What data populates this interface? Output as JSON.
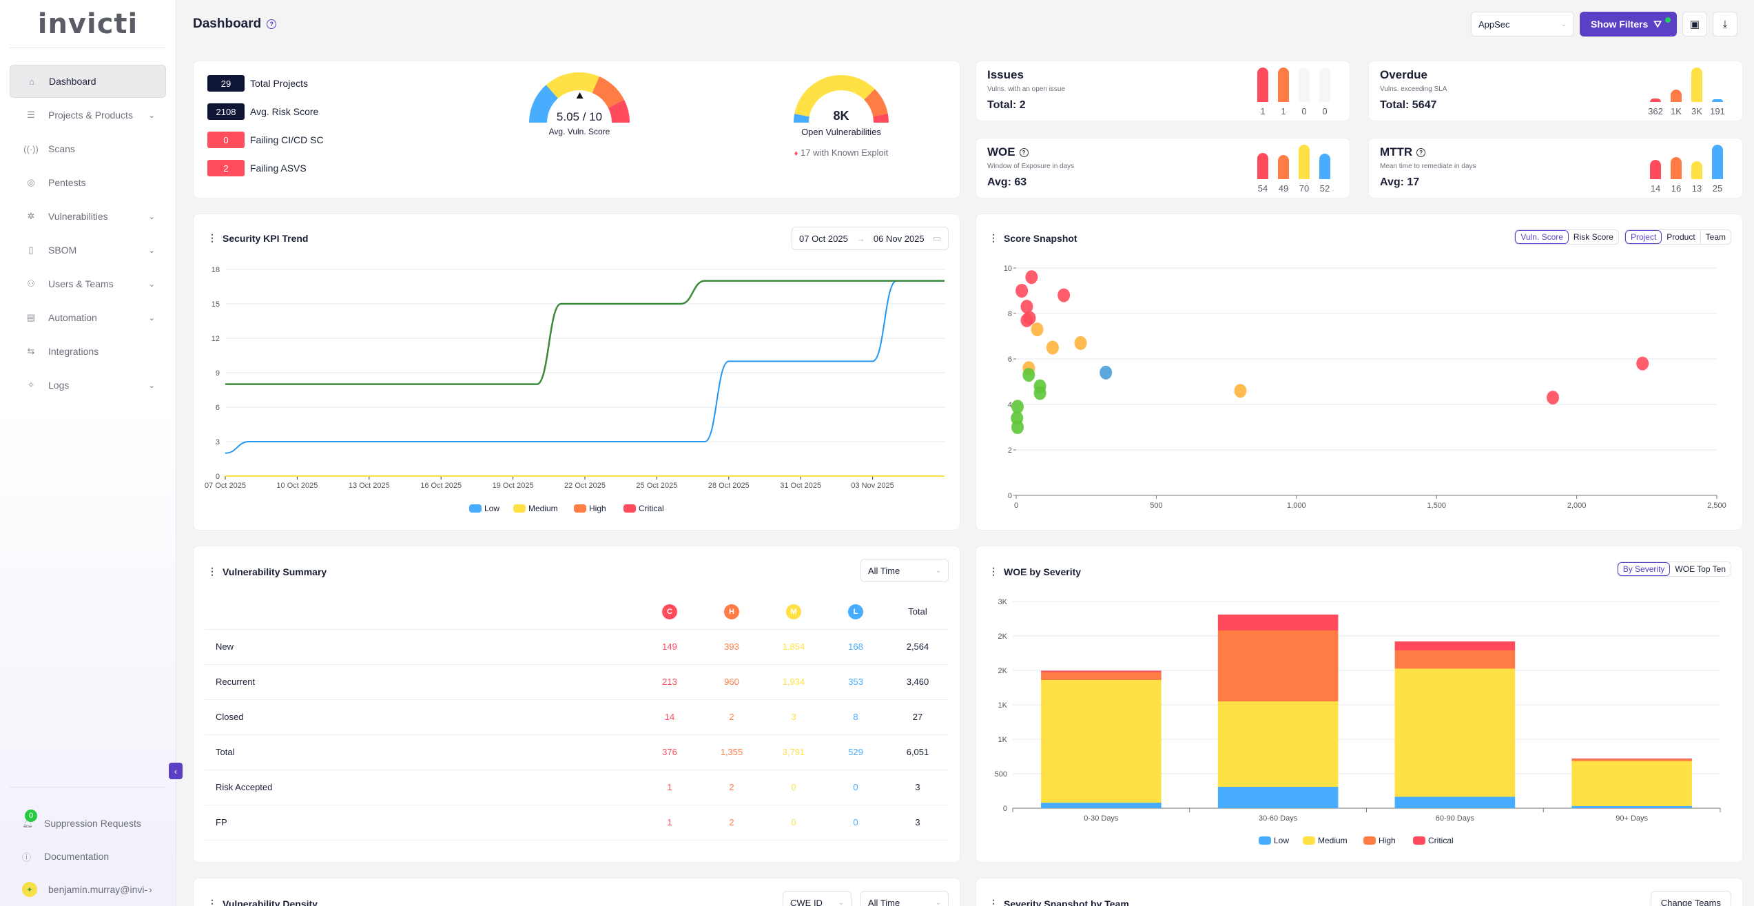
{
  "app": {
    "logo": "invicti"
  },
  "sidebar": {
    "items": [
      {
        "label": "Dashboard",
        "icon": "home-icon",
        "glyph": "⌂",
        "active": true,
        "chevron": false
      },
      {
        "label": "Projects & Products",
        "icon": "list-icon",
        "glyph": "☰",
        "chevron": true
      },
      {
        "label": "Scans",
        "icon": "radar-icon",
        "glyph": "((·))",
        "chevron": false
      },
      {
        "label": "Pentests",
        "icon": "location-icon",
        "glyph": "◎",
        "chevron": false
      },
      {
        "label": "Vulnerabilities",
        "icon": "bug-icon",
        "glyph": "✲",
        "chevron": true
      },
      {
        "label": "SBOM",
        "icon": "file-icon",
        "glyph": "▯",
        "chevron": true
      },
      {
        "label": "Users & Teams",
        "icon": "users-icon",
        "glyph": "⚇",
        "chevron": true
      },
      {
        "label": "Automation",
        "icon": "automation-icon",
        "glyph": "▤",
        "chevron": true
      },
      {
        "label": "Integrations",
        "icon": "integrations-icon",
        "glyph": "⇆",
        "chevron": false
      },
      {
        "label": "Logs",
        "icon": "logs-icon",
        "glyph": "✧",
        "chevron": true
      }
    ],
    "chevron_glyph": "⌄",
    "bottom": {
      "suppression_label": "Suppression Requests",
      "suppression_count": "0",
      "documentation_label": "Documentation",
      "user_email": "benjamin.murray@invi-",
      "user_arrow": "›",
      "collapse_glyph": "‹"
    }
  },
  "header": {
    "title": "Dashboard",
    "help_glyph": "?",
    "workspace_select": "AppSec",
    "show_filters_label": "Show Filters",
    "filter_glyph": "⛛",
    "layout_glyph": "▣",
    "download_glyph": "⤓"
  },
  "overview": {
    "stats": [
      {
        "value": "29",
        "label": "Total Projects",
        "color": "#0f1535"
      },
      {
        "value": "2108",
        "label": "Avg. Risk Score",
        "color": "#0f1535"
      },
      {
        "value": "0",
        "label": "Failing CI/CD SC",
        "color": "#ff4d5e"
      },
      {
        "value": "2",
        "label": "Failing ASVS",
        "color": "#ff4d5e"
      }
    ],
    "vuln_gauge": {
      "value_text": "5.05 / 10",
      "label": "Avg. Vuln. Score",
      "score": 5.05,
      "max": 10
    },
    "open_gauge": {
      "value_text": "8K",
      "label": "Open Vulnerabilities",
      "exploit_text": "17 with Known Exploit",
      "flame_glyph": "🔥"
    }
  },
  "minis": [
    {
      "title": "Issues",
      "help": false,
      "subtitle": "Vulns. with an open issue",
      "total": "Total: 2",
      "bars": [
        {
          "value": "1",
          "level": 1.0
        },
        {
          "value": "1",
          "level": 1.0
        },
        {
          "value": "0",
          "level": 0
        },
        {
          "value": "0",
          "level": 0
        }
      ]
    },
    {
      "title": "Overdue",
      "help": false,
      "subtitle": "Vulns. exceeding SLA",
      "total": "Total: 5647",
      "bars": [
        {
          "value": "362",
          "level": 0.1
        },
        {
          "value": "1K",
          "level": 0.36
        },
        {
          "value": "3K",
          "level": 1.0
        },
        {
          "value": "191",
          "level": 0.06
        }
      ]
    },
    {
      "title": "WOE",
      "help": true,
      "subtitle": "Window of Exposure in days",
      "total": "Avg: 63",
      "bars": [
        {
          "value": "54",
          "level": 0.77
        },
        {
          "value": "49",
          "level": 0.7
        },
        {
          "value": "70",
          "level": 1.0
        },
        {
          "value": "52",
          "level": 0.74
        }
      ]
    },
    {
      "title": "MTTR",
      "help": true,
      "subtitle": "Mean time to remediate in days",
      "total": "Avg: 17",
      "bars": [
        {
          "value": "14",
          "level": 0.56
        },
        {
          "value": "16",
          "level": 0.64
        },
        {
          "value": "13",
          "level": 0.52
        },
        {
          "value": "25",
          "level": 1.0
        }
      ]
    }
  ],
  "severity_colors": {
    "critical": "#ff4b5c",
    "high": "#ff7d45",
    "medium": "#ffe145",
    "low": "#48adff"
  },
  "kpi_card": {
    "title": "Security KPI Trend",
    "date_from": "07 Oct 2025",
    "date_to": "06 Nov 2025",
    "arrow": "→",
    "calendar_glyph": "▭"
  },
  "score_card": {
    "title": "Score Snapshot",
    "toggle_a": [
      "Vuln. Score",
      "Risk Score"
    ],
    "toggle_b": [
      "Project",
      "Product",
      "Team"
    ]
  },
  "summary_card": {
    "title": "Vulnerability Summary",
    "period": "All Time",
    "headers": [
      "C",
      "H",
      "M",
      "L",
      "Total"
    ],
    "rows": [
      {
        "label": "New",
        "values": [
          "149",
          "393",
          "1,854",
          "168",
          "2,564"
        ]
      },
      {
        "label": "Recurrent",
        "values": [
          "213",
          "960",
          "1,934",
          "353",
          "3,460"
        ]
      },
      {
        "label": "Closed",
        "values": [
          "14",
          "2",
          "3",
          "8",
          "27"
        ]
      },
      {
        "label": "Total",
        "values": [
          "376",
          "1,355",
          "3,791",
          "529",
          "6,051"
        ]
      },
      {
        "label": "Risk Accepted",
        "values": [
          "1",
          "2",
          "0",
          "0",
          "3"
        ]
      },
      {
        "label": "FP",
        "values": [
          "1",
          "2",
          "0",
          "0",
          "3"
        ]
      }
    ]
  },
  "woe_card": {
    "title": "WOE by Severity",
    "toggle": [
      "By Severity",
      "WOE Top Ten"
    ]
  },
  "density_card": {
    "title": "Vulnerability Density",
    "filter_a": "CWE ID",
    "filter_b": "All Time"
  },
  "team_card": {
    "title": "Severity Snapshot by Team",
    "button": "Change Teams"
  },
  "chart_data": [
    {
      "type": "line",
      "title": "Security KPI Trend",
      "x": [
        "07 Oct 2025",
        "08 Oct 2025",
        "09 Oct 2025",
        "10 Oct 2025",
        "11 Oct 2025",
        "12 Oct 2025",
        "13 Oct 2025",
        "14 Oct 2025",
        "15 Oct 2025",
        "16 Oct 2025",
        "17 Oct 2025",
        "18 Oct 2025",
        "19 Oct 2025",
        "20 Oct 2025",
        "21 Oct 2025",
        "22 Oct 2025",
        "23 Oct 2025",
        "24 Oct 2025",
        "25 Oct 2025",
        "26 Oct 2025",
        "27 Oct 2025",
        "28 Oct 2025",
        "29 Oct 2025",
        "30 Oct 2025",
        "31 Oct 2025",
        "01 Nov 2025",
        "02 Nov 2025",
        "03 Nov 2025",
        "04 Nov 2025",
        "05 Nov 2025",
        "06 Nov 2025"
      ],
      "xticks": [
        "07 Oct 2025",
        "10 Oct 2025",
        "13 Oct 2025",
        "16 Oct 2025",
        "19 Oct 2025",
        "22 Oct 2025",
        "25 Oct 2025",
        "28 Oct 2025",
        "31 Oct 2025",
        "03 Nov 2025"
      ],
      "ylim": [
        0,
        18
      ],
      "yticks": [
        0,
        3,
        6,
        9,
        12,
        15,
        18
      ],
      "series": [
        {
          "name": "Total",
          "color": "#3a8a3a",
          "legend": false,
          "values": [
            8,
            8,
            8,
            8,
            8,
            8,
            8,
            8,
            8,
            8,
            8,
            8,
            8,
            8,
            15,
            15,
            15,
            15,
            15,
            15,
            17,
            17,
            17,
            17,
            17,
            17,
            17,
            17,
            17,
            17,
            17
          ]
        },
        {
          "name": "Low",
          "color": "#2196f3",
          "legend": true,
          "values": [
            2,
            3,
            3,
            3,
            3,
            3,
            3,
            3,
            3,
            3,
            3,
            3,
            3,
            3,
            3,
            3,
            3,
            3,
            3,
            3,
            3,
            10,
            10,
            10,
            10,
            10,
            10,
            10,
            17,
            17,
            17
          ]
        },
        {
          "name": "Medium",
          "color": "#ffe145",
          "legend": true,
          "values": [
            0,
            0,
            0,
            0,
            0,
            0,
            0,
            0,
            0,
            0,
            0,
            0,
            0,
            0,
            0,
            0,
            0,
            0,
            0,
            0,
            0,
            0,
            0,
            0,
            0,
            0,
            0,
            0,
            0,
            0,
            0
          ]
        },
        {
          "name": "High",
          "color": "#ff7d45",
          "legend": true,
          "values": [
            0,
            0,
            0,
            0,
            0,
            0,
            0,
            0,
            0,
            0,
            0,
            0,
            0,
            0,
            0,
            0,
            0,
            0,
            0,
            0,
            0,
            0,
            0,
            0,
            0,
            0,
            0,
            0,
            0,
            0,
            0
          ]
        },
        {
          "name": "Critical",
          "color": "#ff4b5c",
          "legend": true,
          "values": [
            0,
            0,
            0,
            0,
            0,
            0,
            0,
            0,
            0,
            0,
            0,
            0,
            0,
            0,
            0,
            0,
            0,
            0,
            0,
            0,
            0,
            0,
            0,
            0,
            0,
            0,
            0,
            0,
            0,
            0,
            0
          ]
        }
      ],
      "legend_entries": [
        "Low",
        "Medium",
        "High",
        "Critical"
      ],
      "legend": "bottom",
      "grid": true
    },
    {
      "type": "scatter",
      "title": "Score Snapshot",
      "xlim": [
        0,
        2500
      ],
      "ylim": [
        0,
        10
      ],
      "xticks": [
        "0",
        "500",
        "1,000",
        "1,500",
        "2,000",
        "2,500"
      ],
      "yticks": [
        0,
        2,
        4,
        6,
        8,
        10
      ],
      "points": [
        {
          "x": 55,
          "y": 9.6,
          "sev": "critical"
        },
        {
          "x": 20,
          "y": 9.0,
          "sev": "critical"
        },
        {
          "x": 170,
          "y": 8.8,
          "sev": "critical"
        },
        {
          "x": 38,
          "y": 8.3,
          "sev": "critical"
        },
        {
          "x": 48,
          "y": 7.8,
          "sev": "critical"
        },
        {
          "x": 38,
          "y": 7.7,
          "sev": "critical"
        },
        {
          "x": 75,
          "y": 7.3,
          "sev": "medium"
        },
        {
          "x": 130,
          "y": 6.5,
          "sev": "medium"
        },
        {
          "x": 230,
          "y": 6.7,
          "sev": "medium"
        },
        {
          "x": 45,
          "y": 5.6,
          "sev": "medium"
        },
        {
          "x": 45,
          "y": 5.3,
          "sev": "ok"
        },
        {
          "x": 85,
          "y": 4.8,
          "sev": "ok"
        },
        {
          "x": 85,
          "y": 4.5,
          "sev": "ok"
        },
        {
          "x": 5,
          "y": 3.9,
          "sev": "ok"
        },
        {
          "x": 3,
          "y": 3.4,
          "sev": "ok"
        },
        {
          "x": 5,
          "y": 3.0,
          "sev": "ok"
        },
        {
          "x": 320,
          "y": 5.4,
          "sev": "low"
        },
        {
          "x": 800,
          "y": 4.6,
          "sev": "medium"
        },
        {
          "x": 1915,
          "y": 4.3,
          "sev": "critical"
        },
        {
          "x": 2235,
          "y": 5.8,
          "sev": "critical"
        }
      ],
      "point_colors": {
        "critical": "#ff4b5c",
        "medium": "#ffb33d",
        "ok": "#5ec73a",
        "low": "#4d9fdc"
      },
      "grid": true
    },
    {
      "type": "bar",
      "stacked": true,
      "title": "WOE by Severity",
      "categories": [
        "0-30 Days",
        "30-60 Days",
        "60-90 Days",
        "90+ Days"
      ],
      "ylim": [
        0,
        3000
      ],
      "yticks": [
        {
          "v": 0,
          "label": "0"
        },
        {
          "v": 500,
          "label": "500"
        },
        {
          "v": 1000,
          "label": "1K"
        },
        {
          "v": 1500,
          "label": "1K"
        },
        {
          "v": 2000,
          "label": "2K"
        },
        {
          "v": 2500,
          "label": "2K"
        },
        {
          "v": 3000,
          "label": "3K"
        }
      ],
      "series": [
        {
          "name": "Low",
          "color": "#48adff",
          "values": [
            80,
            310,
            165,
            30
          ]
        },
        {
          "name": "Medium",
          "color": "#ffe145",
          "values": [
            1780,
            1240,
            1860,
            655
          ]
        },
        {
          "name": "High",
          "color": "#ff7d45",
          "values": [
            115,
            1030,
            265,
            25
          ]
        },
        {
          "name": "Critical",
          "color": "#ff4b5c",
          "values": [
            20,
            230,
            130,
            10
          ]
        }
      ],
      "legend": "bottom",
      "grid": true
    }
  ]
}
